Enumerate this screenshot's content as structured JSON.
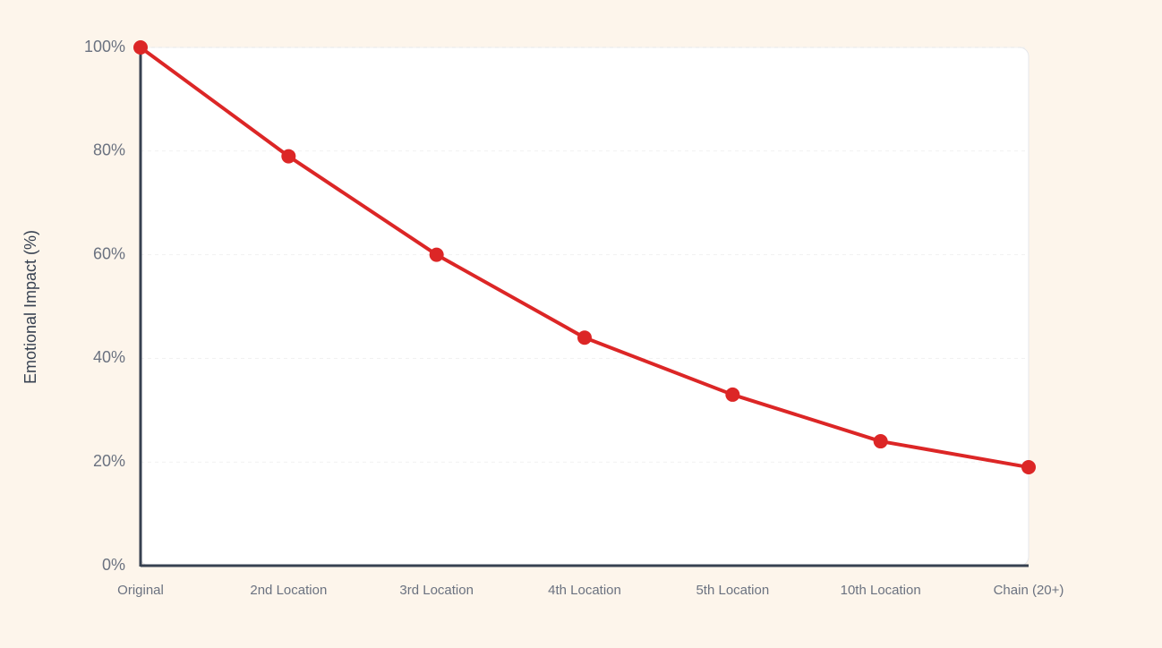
{
  "chart_data": {
    "type": "line",
    "y_label": "Emotional Impact (%)",
    "categories": [
      "Original",
      "2nd Location",
      "3rd Location",
      "4th Location",
      "5th Location",
      "10th Location",
      "Chain (20+)"
    ],
    "series": [
      {
        "name": "Emotional Impact",
        "color": "#dc2626",
        "values": [
          100,
          79,
          60,
          44,
          33,
          24,
          19
        ]
      }
    ],
    "ylim": [
      0,
      100
    ],
    "yticks": [
      {
        "value": 0,
        "label": "0%"
      },
      {
        "value": 20,
        "label": "20%"
      },
      {
        "value": 40,
        "label": "40%"
      },
      {
        "value": 60,
        "label": "60%"
      },
      {
        "value": 80,
        "label": "80%"
      },
      {
        "value": 100,
        "label": "100%"
      }
    ],
    "grid": true
  }
}
